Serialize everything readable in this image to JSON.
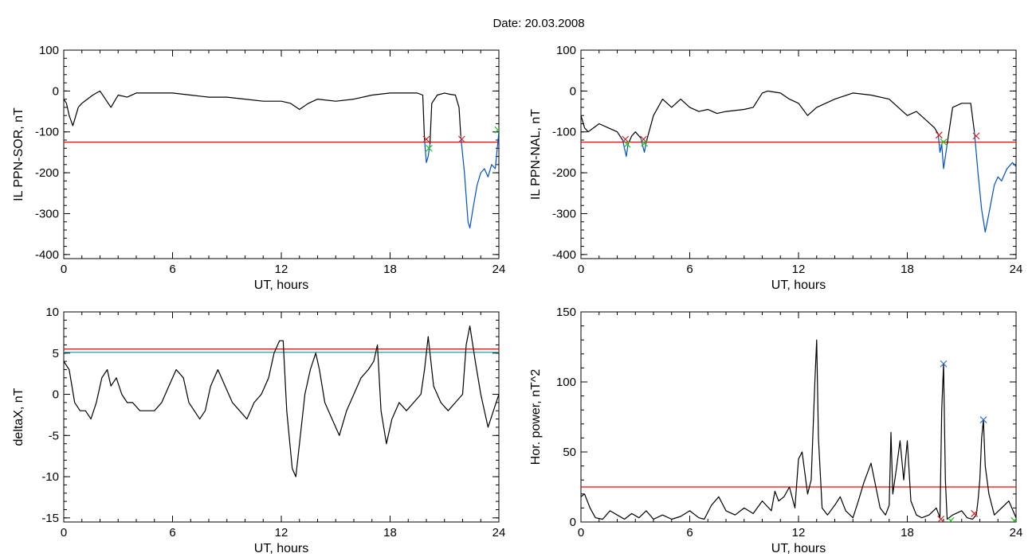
{
  "figure": {
    "title": "Date:  20.03.2008"
  },
  "chart_data": [
    {
      "type": "line",
      "xlabel": "UT, hours",
      "ylabel": "IL PPN-SOR, nT",
      "xlim": [
        0,
        24
      ],
      "ylim": [
        -410,
        100
      ],
      "xticks": [
        0,
        6,
        12,
        18,
        24
      ],
      "yticks": [
        100,
        0,
        -100,
        -200,
        -300,
        -400
      ],
      "series": [
        {
          "color": "#000000",
          "x": [
            0,
            0.15,
            0.3,
            0.5,
            0.6,
            0.8,
            1.0,
            1.3,
            1.6,
            1.8,
            2.0,
            2.3,
            2.6,
            3.0,
            3.5,
            4.0,
            5.0,
            6.0,
            7.0,
            8.0,
            9.0,
            10.0,
            11.0,
            12.0,
            12.5,
            13.0,
            13.5,
            14.0,
            15.0,
            16.0,
            17.0,
            18.0,
            19.0,
            19.5,
            19.8,
            19.9
          ],
          "y": [
            -20,
            -30,
            -60,
            -85,
            -70,
            -40,
            -30,
            -20,
            -10,
            -5,
            0,
            -20,
            -40,
            -10,
            -15,
            -5,
            -5,
            -5,
            -10,
            -15,
            -15,
            -20,
            -25,
            -25,
            -30,
            -45,
            -30,
            -20,
            -25,
            -20,
            -10,
            -5,
            -5,
            -5,
            -10,
            -120
          ]
        },
        {
          "color": "#0050c8",
          "x": [
            19.9,
            20.0,
            20.1,
            20.2
          ],
          "y": [
            -120,
            -175,
            -160,
            -130
          ]
        },
        {
          "color": "#000000",
          "x": [
            20.2,
            20.3,
            20.6,
            21.0,
            21.3,
            21.6,
            21.8,
            21.9
          ],
          "y": [
            -130,
            -30,
            -10,
            -5,
            -8,
            -10,
            -40,
            -110
          ]
        },
        {
          "color": "#0050c8",
          "x": [
            21.9,
            22.1,
            22.3,
            22.4,
            22.6,
            22.8,
            23.0,
            23.2,
            23.4,
            23.6,
            23.8,
            24.0
          ],
          "y": [
            -110,
            -200,
            -320,
            -335,
            -280,
            -230,
            -200,
            -190,
            -210,
            -180,
            -190,
            -100
          ]
        }
      ],
      "threshold": {
        "value": -125,
        "color": "#ff0000"
      },
      "markers": [
        {
          "x": 20.0,
          "y": -118,
          "color": "#d02020"
        },
        {
          "x": 20.15,
          "y": -140,
          "color": "#20c020"
        },
        {
          "x": 21.95,
          "y": -118,
          "color": "#d02020"
        },
        {
          "x": 23.95,
          "y": -95,
          "color": "#20c020"
        }
      ]
    },
    {
      "type": "line",
      "xlabel": "UT, hours",
      "ylabel": "IL PPN-NAL, nT",
      "xlim": [
        0,
        24
      ],
      "ylim": [
        -410,
        100
      ],
      "xticks": [
        0,
        6,
        12,
        18,
        24
      ],
      "yticks": [
        100,
        0,
        -100,
        -200,
        -300,
        -400
      ],
      "series": [
        {
          "color": "#000000",
          "x": [
            0,
            0.2,
            0.4,
            0.7,
            1.0,
            1.5,
            2.0,
            2.3
          ],
          "y": [
            -60,
            -90,
            -100,
            -90,
            -80,
            -90,
            -100,
            -120
          ]
        },
        {
          "color": "#0050c8",
          "x": [
            2.3,
            2.5,
            2.6
          ],
          "y": [
            -120,
            -160,
            -130
          ]
        },
        {
          "color": "#000000",
          "x": [
            2.6,
            2.8,
            3.0,
            3.3
          ],
          "y": [
            -130,
            -110,
            -100,
            -115
          ]
        },
        {
          "color": "#0050c8",
          "x": [
            3.3,
            3.5,
            3.6
          ],
          "y": [
            -115,
            -150,
            -125
          ]
        },
        {
          "color": "#000000",
          "x": [
            3.6,
            4.0,
            4.5,
            5.0,
            5.5,
            6.0,
            6.5,
            7.0,
            7.5,
            8.0,
            9.0,
            9.5,
            10.0,
            10.3,
            11.0,
            11.5,
            12.0,
            12.5,
            13.0,
            14.0,
            15.0,
            16.0,
            17.0,
            17.5,
            18.0,
            18.5,
            19.0,
            19.5,
            19.7
          ],
          "y": [
            -125,
            -60,
            -20,
            -40,
            -20,
            -40,
            -50,
            -45,
            -55,
            -50,
            -45,
            -40,
            -5,
            0,
            -5,
            -20,
            -30,
            -60,
            -40,
            -20,
            -5,
            -10,
            -20,
            -40,
            -60,
            -50,
            -70,
            -90,
            -105
          ]
        },
        {
          "color": "#0050c8",
          "x": [
            19.7,
            19.8,
            19.9,
            20.0,
            20.1,
            20.2
          ],
          "y": [
            -105,
            -150,
            -130,
            -190,
            -160,
            -130
          ]
        },
        {
          "color": "#000000",
          "x": [
            20.2,
            20.5,
            21.0,
            21.5,
            21.7
          ],
          "y": [
            -130,
            -40,
            -30,
            -30,
            -100
          ]
        },
        {
          "color": "#0050c8",
          "x": [
            21.7,
            21.9,
            22.1,
            22.3,
            22.5,
            22.8,
            23.0,
            23.2,
            23.5,
            23.8,
            24.0
          ],
          "y": [
            -100,
            -200,
            -290,
            -345,
            -300,
            -230,
            -210,
            -220,
            -190,
            -175,
            -185
          ]
        }
      ],
      "threshold": {
        "value": -125,
        "color": "#ff0000"
      },
      "markers": [
        {
          "x": 2.45,
          "y": -118,
          "color": "#d02020"
        },
        {
          "x": 2.55,
          "y": -130,
          "color": "#20c020"
        },
        {
          "x": 3.45,
          "y": -118,
          "color": "#d02020"
        },
        {
          "x": 3.5,
          "y": -128,
          "color": "#20c020"
        },
        {
          "x": 19.75,
          "y": -108,
          "color": "#d02020"
        },
        {
          "x": 20.0,
          "y": -125,
          "color": "#20c020"
        },
        {
          "x": 21.8,
          "y": -110,
          "color": "#d02020"
        }
      ]
    },
    {
      "type": "line",
      "xlabel": "UT, hours",
      "ylabel": "deltaX, nT",
      "xlim": [
        0,
        24
      ],
      "ylim": [
        -15.5,
        10
      ],
      "xticks": [
        0,
        6,
        12,
        18,
        24
      ],
      "yticks": [
        10,
        5,
        0,
        -5,
        -10,
        -15
      ],
      "series": [
        {
          "color": "#000000",
          "x": [
            0,
            0.3,
            0.6,
            0.9,
            1.2,
            1.5,
            1.8,
            2.1,
            2.4,
            2.6,
            2.9,
            3.2,
            3.5,
            3.8,
            4.2,
            4.6,
            5.0,
            5.4,
            5.8,
            6.2,
            6.6,
            6.9,
            7.2,
            7.5,
            7.8,
            8.1,
            8.5,
            8.9,
            9.3,
            9.7,
            10.1,
            10.5,
            10.9,
            11.3,
            11.6,
            11.9,
            12.1,
            12.3,
            12.6,
            12.8,
            13.0,
            13.3,
            13.6,
            13.9,
            14.1,
            14.4,
            14.8,
            15.2,
            15.6,
            16.0,
            16.4,
            16.8,
            17.1,
            17.3,
            17.5,
            17.8,
            18.1,
            18.5,
            18.9,
            19.3,
            19.7,
            19.9,
            20.1,
            20.4,
            20.8,
            21.2,
            21.6,
            22.0,
            22.2,
            22.4,
            22.7,
            23.0,
            23.4,
            23.7,
            24.0
          ],
          "y": [
            4,
            3,
            -1,
            -2,
            -2,
            -3,
            -1,
            2,
            3,
            1,
            2,
            0,
            -1,
            -1,
            -2,
            -2,
            -2,
            -1,
            1,
            3,
            2,
            -1,
            -2,
            -3,
            -2,
            1,
            3,
            1,
            -1,
            -2,
            -3,
            -1,
            0,
            2,
            5,
            6.5,
            6.5,
            -2,
            -9,
            -10,
            -6,
            0,
            3,
            5,
            3,
            -1,
            -3,
            -5,
            -2,
            0,
            2,
            3,
            4,
            6,
            -2,
            -6,
            -3,
            -1,
            -2,
            -1,
            0,
            3,
            7,
            1,
            -1,
            -2,
            -1,
            0,
            6,
            8.3,
            4,
            0,
            -4,
            -2,
            0
          ]
        }
      ],
      "threshold": {
        "value": 5.5,
        "color": "#ff0000"
      },
      "threshold2": {
        "value": 5.1,
        "color": "#20a0a0"
      },
      "markers": []
    },
    {
      "type": "line",
      "xlabel": "UT, hours",
      "ylabel": "Hor. power, nT^2",
      "xlim": [
        0,
        24
      ],
      "ylim": [
        0,
        150
      ],
      "xticks": [
        0,
        6,
        12,
        18,
        24
      ],
      "yticks": [
        150,
        100,
        50,
        0
      ],
      "series": [
        {
          "color": "#000000",
          "x": [
            0,
            0.2,
            0.5,
            0.8,
            1.2,
            1.6,
            2.0,
            2.4,
            2.8,
            3.2,
            3.6,
            4.0,
            4.5,
            5.0,
            5.5,
            6.0,
            6.5,
            6.8,
            7.2,
            7.6,
            8.0,
            8.5,
            9.0,
            9.5,
            10.0,
            10.5,
            10.7,
            10.9,
            11.2,
            11.5,
            11.8,
            12.0,
            12.2,
            12.5,
            12.7,
            12.9,
            13.0,
            13.1,
            13.3,
            13.6,
            14.0,
            14.3,
            14.6,
            15.0,
            15.3,
            15.6,
            16.0,
            16.5,
            16.8,
            17.0,
            17.1,
            17.2,
            17.4,
            17.6,
            17.8,
            18.0,
            18.2,
            18.5,
            18.8,
            19.2,
            19.6,
            19.8,
            19.9,
            20.0,
            20.1,
            20.2,
            20.5,
            21.0,
            21.3,
            21.6,
            21.8,
            21.9,
            22.0,
            22.1,
            22.2,
            22.3,
            22.5,
            22.8,
            23.2,
            23.6,
            24.0
          ],
          "y": [
            18,
            20,
            10,
            3,
            2,
            8,
            5,
            2,
            6,
            3,
            8,
            2,
            5,
            2,
            4,
            8,
            3,
            2,
            12,
            18,
            8,
            5,
            10,
            6,
            15,
            8,
            22,
            15,
            18,
            25,
            10,
            45,
            50,
            20,
            30,
            100,
            130,
            60,
            10,
            5,
            12,
            18,
            8,
            3,
            15,
            28,
            42,
            10,
            5,
            12,
            64,
            20,
            38,
            58,
            30,
            58,
            15,
            5,
            3,
            5,
            10,
            3,
            80,
            113,
            30,
            2,
            5,
            8,
            3,
            2,
            5,
            15,
            30,
            60,
            73,
            40,
            20,
            5,
            10,
            15,
            3
          ]
        }
      ],
      "threshold": {
        "value": 25,
        "color": "#ff0000"
      },
      "markers": [
        {
          "x": 20.0,
          "y": 113,
          "color": "#3070c8"
        },
        {
          "x": 22.2,
          "y": 73,
          "color": "#3070c8"
        },
        {
          "x": 19.85,
          "y": 2,
          "color": "#d02020"
        },
        {
          "x": 20.4,
          "y": 1,
          "color": "#20c020"
        },
        {
          "x": 21.7,
          "y": 6,
          "color": "#d02020"
        },
        {
          "x": 23.9,
          "y": 1,
          "color": "#20c020"
        }
      ]
    }
  ]
}
